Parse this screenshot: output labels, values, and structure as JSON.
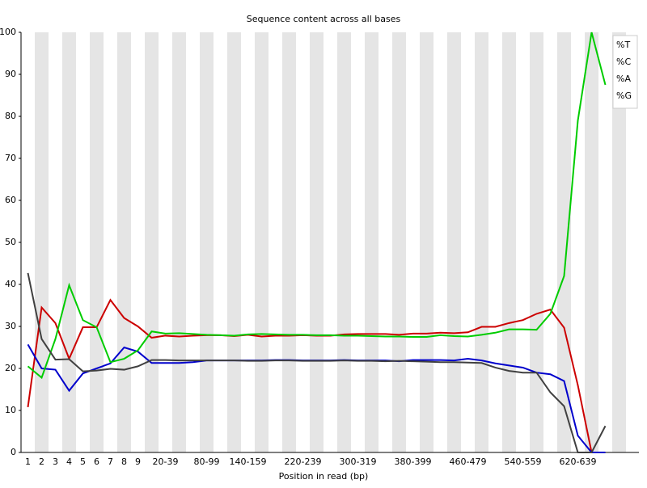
{
  "chart_data": {
    "type": "line",
    "title": "Sequence content across all bases",
    "x_label": "Position in read (bp)",
    "categories": [
      "1",
      "2",
      "3",
      "4",
      "5",
      "6",
      "7",
      "8",
      "9",
      null,
      "20-39",
      null,
      null,
      "80-99",
      null,
      null,
      "140-159",
      null,
      null,
      null,
      "220-239",
      null,
      null,
      null,
      "300-319",
      null,
      null,
      null,
      "380-399",
      null,
      null,
      null,
      "460-479",
      null,
      null,
      null,
      "540-559",
      null,
      null,
      null,
      "620-639",
      null,
      null
    ],
    "series": [
      {
        "name": "%T",
        "color": "#cc0000",
        "values": [
          10.8,
          34.5,
          30.8,
          22.3,
          29.8,
          29.8,
          36.3,
          32,
          30,
          27.3,
          27.8,
          27.6,
          27.8,
          27.9,
          27.9,
          27.7,
          28,
          27.6,
          27.8,
          27.8,
          27.9,
          27.8,
          27.8,
          28.1,
          28.2,
          28.2,
          28.2,
          28,
          28.3,
          28.3,
          28.5,
          28.4,
          28.6,
          29.9,
          29.9,
          30.8,
          31.5,
          33,
          34,
          29.7,
          16,
          0,
          0
        ]
      },
      {
        "name": "%C",
        "color": "#0000cc",
        "values": [
          25.7,
          20,
          19.7,
          14.7,
          18.8,
          20,
          21.2,
          25,
          24,
          21.3,
          21.3,
          21.3,
          21.5,
          21.9,
          21.9,
          21.9,
          21.9,
          21.9,
          22,
          22,
          21.9,
          21.9,
          21.9,
          22,
          21.9,
          21.9,
          21.9,
          21.7,
          22,
          22,
          22,
          21.9,
          22.3,
          21.9,
          21.2,
          20.7,
          20.2,
          19,
          18.6,
          17,
          4,
          0,
          0
        ]
      },
      {
        "name": "%A",
        "color": "#00cc00",
        "values": [
          20.5,
          17.8,
          27,
          39.8,
          31.5,
          29.8,
          21.5,
          22.3,
          24.3,
          28.8,
          28.3,
          28.4,
          28.2,
          28,
          27.9,
          27.8,
          28.1,
          28.2,
          28.1,
          28,
          28,
          27.9,
          27.9,
          27.8,
          27.8,
          27.7,
          27.6,
          27.6,
          27.5,
          27.5,
          27.9,
          27.7,
          27.6,
          28,
          28.5,
          29.3,
          29.3,
          29.2,
          33,
          42,
          79,
          100,
          87.5
        ]
      },
      {
        "name": "%G",
        "color": "#404040",
        "values": [
          42.7,
          27,
          22.1,
          22.2,
          19.3,
          19.5,
          19.9,
          19.7,
          20.5,
          22,
          22,
          21.9,
          21.9,
          21.9,
          21.9,
          21.9,
          21.8,
          21.8,
          21.9,
          21.9,
          21.8,
          21.8,
          21.8,
          21.9,
          21.8,
          21.8,
          21.7,
          21.8,
          21.7,
          21.6,
          21.5,
          21.5,
          21.4,
          21.3,
          20.2,
          19.4,
          19,
          19,
          14.3,
          11,
          0,
          0,
          6.3
        ]
      }
    ],
    "ylim": [
      0,
      100
    ],
    "yticks": [
      0,
      10,
      20,
      30,
      40,
      50,
      60,
      70,
      80,
      90,
      100
    ],
    "stripes": true,
    "legend": "top-right"
  }
}
